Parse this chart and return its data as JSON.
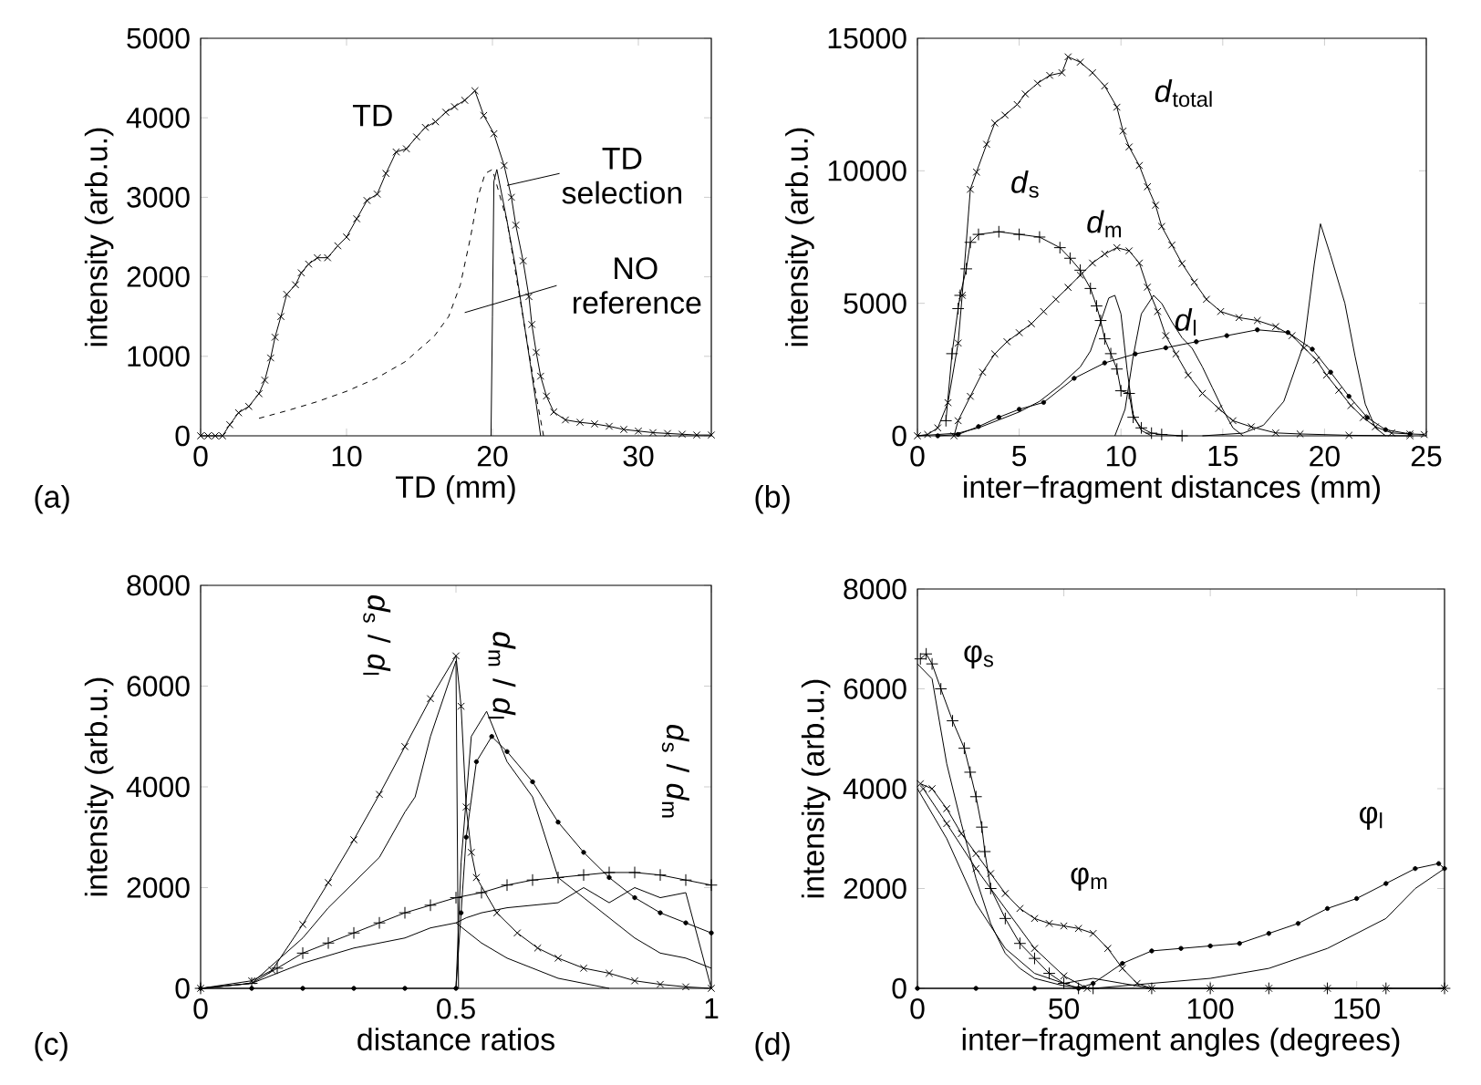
{
  "chart_data": [
    {
      "type": "line",
      "xlabel": "TD (mm)",
      "ylabel": "intensity (arb.u.)",
      "xlim": [
        0,
        35
      ],
      "ylim": [
        0,
        5000
      ],
      "xticks": [
        0,
        10,
        20,
        30
      ],
      "yticks": [
        0,
        1000,
        2000,
        3000,
        4000,
        5000
      ],
      "annotations": [
        "(a)"
      ],
      "series": [
        {
          "name": "TD",
          "color": "#000000",
          "marker": "cross",
          "line_style": "solid",
          "x": [
            0,
            0.5,
            1,
            1.5,
            2,
            2.6,
            3.3,
            4,
            4.4,
            4.8,
            5.1,
            5.5,
            5.9,
            6.5,
            6.9,
            7.4,
            8,
            8.7,
            9.4,
            10,
            10.7,
            11.4,
            12.1,
            12.7,
            13.4,
            14.1,
            14.8,
            15.4,
            16.1,
            16.8,
            17.4,
            18.1,
            18.8,
            19.4,
            20.1,
            20.8,
            21.3,
            21.6,
            22.1,
            22.5,
            22.7,
            23,
            23.3,
            23.7,
            24.2,
            25,
            26,
            27,
            28,
            29,
            30,
            31,
            32,
            33,
            34,
            35
          ],
          "values": [
            0,
            0,
            0,
            0,
            140,
            290,
            370,
            530,
            700,
            980,
            1240,
            1500,
            1780,
            1900,
            2050,
            2160,
            2240,
            2240,
            2390,
            2500,
            2730,
            2960,
            3040,
            3300,
            3570,
            3610,
            3760,
            3880,
            3950,
            4070,
            4140,
            4220,
            4340,
            4030,
            3800,
            3400,
            3000,
            2650,
            2200,
            1750,
            1400,
            1050,
            750,
            500,
            300,
            200,
            170,
            150,
            120,
            80,
            60,
            40,
            30,
            20,
            10,
            10
          ]
        },
        {
          "name": "TD selection",
          "color": "#000000",
          "marker": "none",
          "line_style": "solid",
          "x": [
            19.9,
            20,
            20.1,
            20.3,
            21,
            21.6,
            22.1,
            22.6,
            23,
            23.3
          ],
          "values": [
            0,
            1500,
            3200,
            3350,
            2700,
            2100,
            1500,
            900,
            400,
            0
          ]
        },
        {
          "name": "NO reference",
          "color": "#000000",
          "marker": "none",
          "line_style": "dashed",
          "x": [
            4,
            6,
            8,
            10,
            12,
            14,
            16,
            17,
            17.8,
            18.5,
            19,
            19.5,
            20,
            21,
            22,
            23,
            23.5
          ],
          "values": [
            220,
            320,
            430,
            560,
            720,
            930,
            1250,
            1500,
            1900,
            2500,
            3000,
            3300,
            3350,
            2700,
            1600,
            500,
            0
          ]
        }
      ]
    },
    {
      "type": "line",
      "xlabel": "inter−fragment distances (mm)",
      "ylabel": "intensity (arb.u.)",
      "xlim": [
        0,
        25
      ],
      "ylim": [
        0,
        15000
      ],
      "xticks": [
        0,
        5,
        10,
        15,
        20,
        25
      ],
      "yticks": [
        0,
        5000,
        10000,
        15000
      ],
      "annotations": [
        "(b)"
      ],
      "series": [
        {
          "name": "*d*$_{total}$",
          "color": "#000000",
          "marker": "cross",
          "line_style": "solid",
          "x": [
            0,
            0.5,
            1,
            1.5,
            2,
            2.2,
            2.6,
            2.9,
            3.4,
            3.8,
            4.3,
            4.9,
            5.3,
            5.9,
            6.5,
            7.1,
            7.4,
            8,
            8.6,
            9.2,
            9.8,
            10.1,
            10.4,
            10.9,
            11.3,
            11.7,
            12,
            12.5,
            13,
            13.6,
            14.2,
            14.9,
            15.8,
            16.7,
            17.6,
            18.4,
            19,
            19.6,
            20.1,
            20.7,
            21.3,
            21.9,
            22.5,
            23.3,
            24.2,
            24.9
          ],
          "values": [
            0,
            50,
            300,
            1250,
            3500,
            5300,
            9300,
            9950,
            11000,
            11800,
            12100,
            12500,
            12900,
            13300,
            13600,
            13700,
            14300,
            14100,
            13700,
            13200,
            12400,
            11500,
            10900,
            10200,
            9400,
            8700,
            7900,
            7200,
            6500,
            5800,
            5150,
            4690,
            4460,
            4350,
            4120,
            3780,
            3320,
            2860,
            2290,
            1720,
            1140,
            690,
            340,
            110,
            70,
            50
          ]
        },
        {
          "name": "*d*$_{s}$",
          "color": "#000000",
          "marker": "plus",
          "line_style": "solid",
          "x": [
            1.4,
            1.7,
            2,
            2.1,
            2.4,
            2.6,
            3,
            4,
            5,
            6,
            7,
            7.5,
            8,
            8.5,
            8.8,
            9,
            9.2,
            9.5,
            9.8,
            10,
            10.4,
            10.6,
            11,
            11.5,
            12,
            13
          ],
          "values": [
            570,
            3100,
            4800,
            5300,
            6300,
            7300,
            7600,
            7700,
            7600,
            7500,
            7100,
            6700,
            6250,
            5560,
            4900,
            4350,
            3660,
            3100,
            2520,
            1700,
            1600,
            700,
            300,
            100,
            50,
            0
          ]
        },
        {
          "name": "*d*$_{m}$",
          "color": "#000000",
          "marker": "cross",
          "line_style": "solid",
          "x": [
            1.8,
            2,
            2.6,
            3.2,
            3.8,
            4.4,
            5,
            5.6,
            6.2,
            6.8,
            7.4,
            8,
            8.6,
            9.2,
            9.8,
            10.4,
            10.9,
            11.3,
            11.8,
            12.2,
            12.7,
            13.3,
            14,
            14.8,
            15.5,
            16.4,
            17.6,
            18.8,
            21.2,
            24.2
          ],
          "values": [
            0,
            570,
            1490,
            2400,
            3090,
            3550,
            3890,
            4230,
            4690,
            5150,
            5600,
            6060,
            6520,
            6860,
            7100,
            6980,
            6520,
            5610,
            4690,
            3780,
            3090,
            2290,
            1600,
            1030,
            570,
            340,
            110,
            70,
            20,
            0
          ]
        },
        {
          "name": "*d*$_{l}$",
          "color": "#000000",
          "marker": "circle",
          "line_style": "solid",
          "x": [
            1,
            2,
            3,
            4,
            5,
            6.2,
            7.7,
            9.2,
            10.7,
            12.2,
            13.7,
            15.2,
            16.7,
            18.2,
            19.4,
            20.3,
            21.2,
            22.1,
            23,
            24.2
          ],
          "values": [
            0,
            50,
            350,
            700,
            1000,
            1260,
            2170,
            2750,
            3090,
            3320,
            3550,
            3780,
            4000,
            3900,
            3270,
            2400,
            1490,
            690,
            230,
            70
          ]
        },
        {
          "color": "#000000",
          "marker": "none",
          "line_style": "solid",
          "x": [
            0,
            2,
            3,
            4,
            5,
            6,
            7,
            8,
            8.5,
            9,
            9.4,
            9.7,
            10,
            10.3,
            10.6,
            11,
            11.5
          ],
          "values": [
            0,
            100,
            300,
            600,
            900,
            1300,
            1900,
            2600,
            3200,
            4300,
            5200,
            5300,
            4600,
            2500,
            800,
            200,
            0
          ]
        },
        {
          "color": "#000000",
          "marker": "none",
          "line_style": "solid",
          "x": [
            9.7,
            10.2,
            10.6,
            11,
            11.6,
            12,
            12.5,
            13,
            13.5,
            14,
            14.5,
            15,
            15.5,
            16
          ],
          "values": [
            0,
            1000,
            3000,
            4600,
            5300,
            5000,
            4300,
            3700,
            3300,
            2600,
            1800,
            1000,
            300,
            0
          ]
        },
        {
          "color": "#000000",
          "marker": "none",
          "line_style": "solid",
          "x": [
            14,
            16,
            17,
            18,
            19,
            19.5,
            19.8,
            20.3,
            21,
            21.5,
            22,
            22.5,
            23
          ],
          "values": [
            0,
            100,
            400,
            1300,
            3500,
            6500,
            8000,
            6800,
            5000,
            3000,
            1200,
            300,
            0
          ]
        }
      ]
    },
    {
      "type": "line",
      "xlabel": "distance ratios",
      "ylabel": "intensity (arb.u.)",
      "xlim": [
        0,
        1
      ],
      "ylim": [
        0,
        8000
      ],
      "xticks": [
        0,
        0.5,
        1
      ],
      "yticks": [
        0,
        2000,
        4000,
        6000,
        8000
      ],
      "annotations": [
        "(c)"
      ],
      "series": [
        {
          "name": "*d*$_{s}$ / *d*$_{l}$",
          "color": "#000000",
          "marker": "cross",
          "line_style": "solid",
          "x": [
            0,
            0.1,
            0.14,
            0.2,
            0.25,
            0.3,
            0.35,
            0.4,
            0.45,
            0.5,
            0.51,
            0.52,
            0.53,
            0.54,
            0.58,
            0.62,
            0.66,
            0.7,
            0.75,
            0.8,
            0.85,
            0.9,
            0.95,
            1
          ],
          "values": [
            0,
            150,
            360,
            1270,
            2100,
            2950,
            3850,
            4800,
            5750,
            6600,
            5600,
            3600,
            2700,
            2200,
            1500,
            1100,
            800,
            600,
            400,
            300,
            150,
            80,
            30,
            0
          ]
        },
        {
          "name": "*d*$_{m}$ / *d*$_{l}$",
          "color": "#000000",
          "marker": "circle",
          "line_style": "solid",
          "x": [
            0,
            0.1,
            0.2,
            0.3,
            0.4,
            0.5,
            0.51,
            0.52,
            0.54,
            0.57,
            0.6,
            0.65,
            0.7,
            0.75,
            0.8,
            0.85,
            0.9,
            0.95,
            1
          ],
          "values": [
            0,
            0,
            0,
            0,
            0,
            0,
            1500,
            3000,
            4500,
            5000,
            4700,
            4100,
            3300,
            2700,
            2200,
            1800,
            1500,
            1300,
            1100
          ]
        },
        {
          "name": "*d*$_{s}$ / *d*$_{m}$",
          "color": "#000000",
          "marker": "plus",
          "line_style": "solid",
          "x": [
            0,
            0.1,
            0.15,
            0.2,
            0.25,
            0.3,
            0.35,
            0.4,
            0.45,
            0.5,
            0.55,
            0.6,
            0.65,
            0.7,
            0.75,
            0.8,
            0.85,
            0.9,
            0.95,
            1
          ],
          "values": [
            0,
            100,
            400,
            700,
            900,
            1100,
            1300,
            1500,
            1650,
            1800,
            1900,
            2050,
            2150,
            2200,
            2250,
            2300,
            2300,
            2250,
            2150,
            2050
          ]
        },
        {
          "color": "#000000",
          "marker": "none",
          "line_style": "solid",
          "x": [
            0,
            0.1,
            0.2,
            0.25,
            0.3,
            0.35,
            0.4,
            0.42,
            0.45,
            0.5,
            0.505
          ],
          "values": [
            0,
            100,
            1000,
            1600,
            2100,
            2600,
            3500,
            3800,
            5000,
            6500,
            0
          ]
        },
        {
          "color": "#000000",
          "marker": "none",
          "line_style": "solid",
          "x": [
            0.5,
            0.51,
            0.53,
            0.56,
            0.6,
            0.65,
            0.7,
            0.75,
            0.8,
            0.85,
            0.9,
            0.95,
            1
          ],
          "values": [
            0,
            2500,
            5000,
            5500,
            4500,
            3800,
            2200,
            1800,
            1400,
            1000,
            700,
            600,
            400
          ]
        },
        {
          "color": "#000000",
          "marker": "none",
          "line_style": "solid",
          "x": [
            0,
            0.1,
            0.2,
            0.3,
            0.4,
            0.45,
            0.5,
            0.52,
            0.55,
            0.6,
            0.7,
            0.75,
            0.8,
            0.85,
            0.9,
            0.95,
            1
          ],
          "values": [
            0,
            100,
            500,
            800,
            1000,
            1200,
            1300,
            1400,
            1500,
            1600,
            1700,
            2000,
            1700,
            2000,
            1800,
            1900,
            0
          ]
        },
        {
          "color": "#000000",
          "marker": "none",
          "line_style": "solid",
          "x": [
            0.5,
            0.55,
            0.6,
            0.65,
            0.7,
            0.75,
            0.8
          ],
          "values": [
            1300,
            900,
            600,
            400,
            200,
            100,
            0
          ]
        }
      ]
    },
    {
      "type": "line",
      "xlabel": "inter−fragment angles (degrees)",
      "ylabel": "intensity (arb.u.)",
      "xlim": [
        0,
        180
      ],
      "ylim": [
        0,
        8000
      ],
      "xticks": [
        0,
        50,
        100,
        150
      ],
      "yticks": [
        0,
        2000,
        4000,
        6000,
        8000
      ],
      "annotations": [
        "(d)"
      ],
      "series": [
        {
          "name": "φ$_{s}$",
          "color": "#000000",
          "marker": "plus",
          "line_style": "solid",
          "x": [
            1,
            3,
            5,
            8,
            12,
            16,
            18,
            20,
            22,
            23,
            25,
            30,
            35,
            40,
            45,
            50,
            55,
            60,
            80,
            100,
            120,
            140,
            160,
            180
          ],
          "values": [
            6600,
            6700,
            6500,
            6000,
            5360,
            4810,
            4330,
            3840,
            3230,
            2740,
            2000,
            1400,
            900,
            600,
            300,
            100,
            0,
            0,
            0,
            0,
            0,
            0,
            0,
            0
          ]
        },
        {
          "name": "φ$_{m}$",
          "color": "#000000",
          "marker": "cross",
          "line_style": "solid",
          "x": [
            1,
            5,
            10,
            15,
            20,
            25,
            30,
            35,
            40,
            45,
            50,
            55,
            60,
            65,
            70,
            75,
            80,
            100,
            120,
            140,
            160,
            180
          ],
          "values": [
            4100,
            4000,
            3600,
            3100,
            2700,
            2300,
            1900,
            1600,
            1400,
            1300,
            1250,
            1200,
            1100,
            800,
            400,
            100,
            0,
            0,
            0,
            0,
            0,
            0
          ]
        },
        {
          "name": "φ$_{l}$",
          "color": "#000000",
          "marker": "circle",
          "line_style": "solid",
          "x": [
            0,
            20,
            40,
            55,
            60,
            70,
            80,
            90,
            100,
            110,
            120,
            130,
            140,
            150,
            160,
            170,
            178,
            180
          ],
          "values": [
            0,
            0,
            0,
            0,
            100,
            500,
            750,
            800,
            850,
            900,
            1100,
            1300,
            1600,
            1800,
            2100,
            2400,
            2500,
            2400
          ]
        },
        {
          "color": "#000000",
          "marker": "cross",
          "line_style": "solid",
          "x": [
            2,
            10,
            20,
            40,
            50,
            58
          ],
          "values": [
            4000,
            3300,
            2400,
            800,
            250,
            0
          ]
        },
        {
          "color": "#000000",
          "marker": "none",
          "line_style": "solid",
          "x": [
            0,
            5,
            10,
            15,
            20,
            25,
            30,
            35,
            40,
            50,
            60
          ],
          "values": [
            6500,
            6200,
            4500,
            3300,
            2200,
            1300,
            700,
            400,
            200,
            50,
            0
          ]
        },
        {
          "color": "#000000",
          "marker": "none",
          "line_style": "solid",
          "x": [
            0,
            10,
            20,
            30,
            40,
            50,
            60,
            70,
            80
          ],
          "values": [
            4000,
            3000,
            1700,
            800,
            300,
            100,
            200,
            100,
            0
          ]
        },
        {
          "color": "#000000",
          "marker": "none",
          "line_style": "solid",
          "x": [
            60,
            80,
            100,
            120,
            140,
            160,
            170,
            180
          ],
          "values": [
            0,
            100,
            200,
            400,
            800,
            1400,
            2000,
            2400
          ]
        }
      ]
    }
  ]
}
